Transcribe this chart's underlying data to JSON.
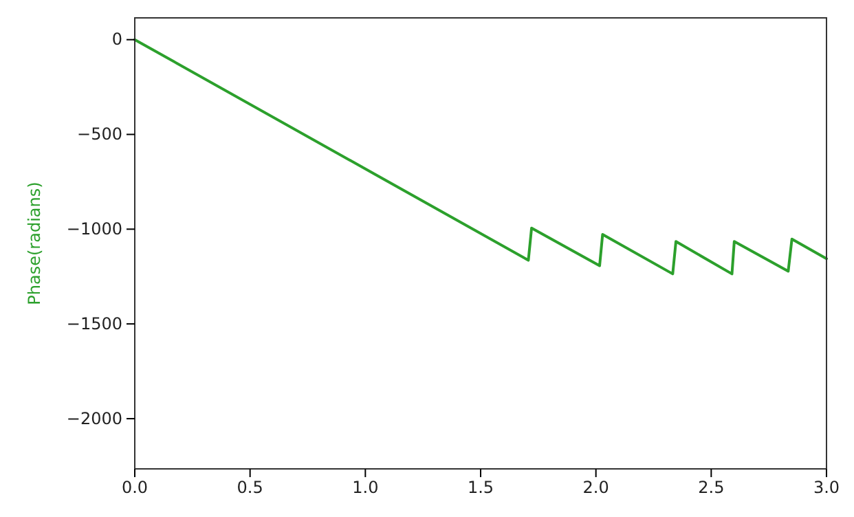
{
  "chart_data": {
    "type": "line",
    "ylabel": "Phase(radians)",
    "xlim": [
      0,
      3
    ],
    "ylim": [
      -2265,
      115
    ],
    "xticks": [
      {
        "value": 0,
        "label": "0.0"
      },
      {
        "value": 0.5,
        "label": "0.5"
      },
      {
        "value": 1,
        "label": "1.0"
      },
      {
        "value": 1.5,
        "label": "1.5"
      },
      {
        "value": 2,
        "label": "2.0"
      },
      {
        "value": 2.5,
        "label": "2.5"
      },
      {
        "value": 3,
        "label": "3.0"
      }
    ],
    "yticks": [
      {
        "value": 0,
        "label": "0"
      },
      {
        "value": -500,
        "label": "−500"
      },
      {
        "value": -1000,
        "label": "−1000"
      },
      {
        "value": -1500,
        "label": "−1500"
      },
      {
        "value": -2000,
        "label": "−2000"
      }
    ],
    "grid": false,
    "series": [
      {
        "color": "#2ca02c",
        "x": [
          0,
          1.707,
          1.721,
          2.016,
          2.029,
          2.333,
          2.347,
          2.59,
          2.6,
          2.834,
          2.85,
          3.0
        ],
        "values": [
          0,
          -1164,
          -994,
          -1193,
          -1028,
          -1236,
          -1065,
          -1236,
          -1065,
          -1222,
          -1052,
          -1156
        ]
      }
    ]
  }
}
